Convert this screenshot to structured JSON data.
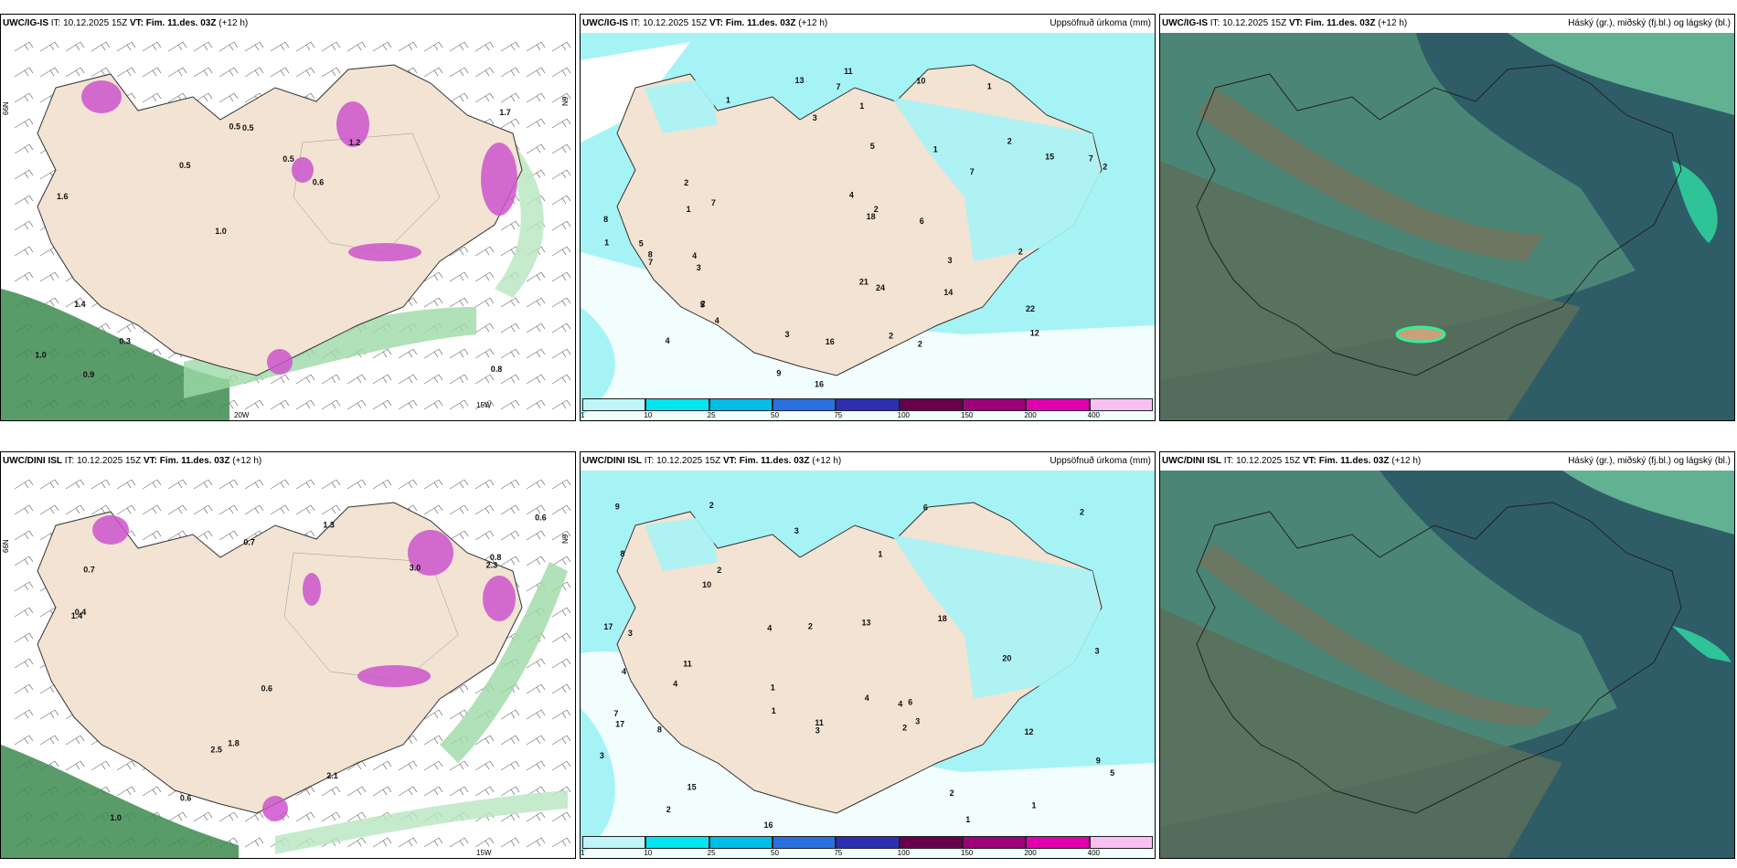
{
  "legend": {
    "colors": [
      "#bff5f8",
      "#00e5ee",
      "#00bde8",
      "#2a6fe0",
      "#2b2fb0",
      "#6a004d",
      "#a0007a",
      "#e000b0",
      "#f8c0f0"
    ],
    "ticks": [
      "1",
      "10",
      "25",
      "50",
      "75",
      "100",
      "150",
      "200",
      "400"
    ]
  },
  "colors": {
    "land": "#f2e3d3",
    "coast": "#333333",
    "precip": "#a6f3f6",
    "wind_green": "#3d8b4f",
    "cloud_dark": "#2e5d68",
    "cloud_mid": "#4f8a78"
  },
  "panels": [
    {
      "id": "igis-wind",
      "model": "UWC/IG-IS",
      "it_label": "IT:",
      "it": "10.12.2025 15Z",
      "vt_label": "VT:",
      "vt": "Fim. 11.des. 03Z",
      "lead": "(+12 h)",
      "right": "",
      "axis_labels": [
        "66N",
        "20W",
        "15W",
        "N9"
      ],
      "values": [
        "0.8",
        "1.6",
        "1.7",
        "1.0",
        "1.2",
        "0.9",
        "0.5",
        "0.5",
        "1.4",
        "0.5",
        "1.0",
        "0.3",
        "0.5",
        "0.6"
      ]
    },
    {
      "id": "igis-precip",
      "model": "UWC/IG-IS",
      "it_label": "IT:",
      "it": "10.12.2025 15Z",
      "vt_label": "VT:",
      "vt": "Fim. 11.des. 03Z",
      "lead": "(+12 h)",
      "right": "Uppsöfnuð úrkoma (mm)",
      "values": [
        "4",
        "1",
        "1",
        "2",
        "24",
        "7",
        "3",
        "2",
        "15",
        "7",
        "5",
        "11",
        "14",
        "18",
        "16",
        "13",
        "12",
        "8",
        "5",
        "9",
        "2",
        "7",
        "3",
        "2",
        "4",
        "3",
        "8",
        "10",
        "5",
        "3",
        "2",
        "4",
        "2",
        "21",
        "22",
        "7",
        "7",
        "6",
        "1",
        "2",
        "2",
        "1",
        "16",
        "4",
        "1",
        "1"
      ]
    },
    {
      "id": "igis-cloud",
      "model": "UWC/IG-IS",
      "it_label": "IT:",
      "it": "10.12.2025 15Z",
      "vt_label": "VT:",
      "vt": "Fim. 11.des. 03Z",
      "lead": "(+12 h)",
      "right": "Háský (gr.), miðský (fj.bl.) og lágský (bl.)"
    },
    {
      "id": "dini-wind",
      "model": "UWC/DINI ISL",
      "it_label": "IT:",
      "it": "10.12.2025 15Z",
      "vt_label": "VT:",
      "vt": "Fim. 11.des. 03Z",
      "lead": "(+12 h)",
      "right": "",
      "axis_labels": [
        "66N",
        "15W",
        "N9"
      ],
      "values": [
        "2.5",
        "1.8",
        "1.3",
        "1.0",
        "0.7",
        "0.6",
        "0.6",
        "0.8",
        "2.1",
        "1.4",
        "0.7",
        "3.0",
        "2.3",
        "0.6",
        "0.4"
      ]
    },
    {
      "id": "dini-precip",
      "model": "UWC/DINI ISL",
      "it_label": "IT:",
      "it": "10.12.2025 15Z",
      "vt_label": "VT:",
      "vt": "Fim. 11.des. 03Z",
      "lead": "(+12 h)",
      "right": "Uppsöfnuð úrkoma (mm)",
      "values": [
        "3",
        "3",
        "2",
        "2",
        "1",
        "2",
        "20",
        "6",
        "4",
        "13",
        "15",
        "17",
        "8",
        "11",
        "12",
        "9",
        "18",
        "17",
        "16",
        "10",
        "7",
        "4",
        "3",
        "2",
        "9",
        "6",
        "2",
        "4",
        "4",
        "5",
        "3",
        "1",
        "3",
        "8",
        "4",
        "2",
        "1",
        "3",
        "1",
        "2",
        "11",
        "1"
      ]
    },
    {
      "id": "dini-cloud",
      "model": "UWC/DINI ISL",
      "it_label": "IT:",
      "it": "10.12.2025 15Z",
      "vt_label": "VT:",
      "vt": "Fim. 11.des. 03Z",
      "lead": "(+12 h)",
      "right": "Háský (gr.), miðský (fj.bl.) og lágský (bl.)"
    }
  ]
}
